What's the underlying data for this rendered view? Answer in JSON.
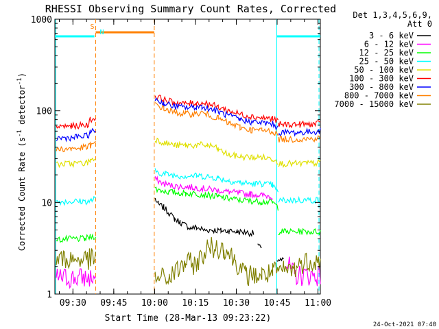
{
  "chart_data": {
    "type": "line",
    "title": "RHESSI Observing Summary Count Rates, Corrected",
    "xlabel": "Start Time (28-Mar-13 09:23:22)",
    "ylabel_main": "Corrected Count Rate (s",
    "ylabel_sup1": "-1",
    "ylabel_mid": " detector",
    "ylabel_sup2": "-1",
    "ylabel_end": ")",
    "yscale": "log",
    "ylim": [
      1,
      1000
    ],
    "x_unit": "minutes after 09:23:22",
    "xlim": [
      0,
      97.5
    ],
    "y_ticks": [
      {
        "v": 1,
        "label": "1"
      },
      {
        "v": 10,
        "label": "10"
      },
      {
        "v": 100,
        "label": "100"
      },
      {
        "v": 1000,
        "label": "1000"
      }
    ],
    "x_ticks": [
      {
        "v": 6.63,
        "label": "09:30"
      },
      {
        "v": 21.63,
        "label": "09:45"
      },
      {
        "v": 36.63,
        "label": "10:00"
      },
      {
        "v": 51.63,
        "label": "10:15"
      },
      {
        "v": 66.63,
        "label": "10:30"
      },
      {
        "v": 81.63,
        "label": "10:45"
      },
      {
        "v": 96.63,
        "label": "11:00"
      }
    ],
    "legend_header": [
      "Det 1,3,4,5,6,9,",
      "Att 0"
    ],
    "legend_position": "right",
    "series": [
      {
        "name": "3 - 6 keV",
        "color": "#000000",
        "segments": [
          [
            [
              36.8,
              11
            ],
            [
              38,
              9.5
            ],
            [
              40,
              8.8
            ],
            [
              42,
              7.6
            ],
            [
              44,
              6.6
            ],
            [
              46,
              6.1
            ],
            [
              48,
              5.6
            ],
            [
              50,
              5.3
            ],
            [
              52,
              5.3
            ],
            [
              55,
              5.0
            ],
            [
              58,
              5.0
            ],
            [
              61,
              4.9
            ],
            [
              64,
              4.9
            ],
            [
              67,
              4.8
            ],
            [
              70,
              4.7
            ],
            [
              73,
              4.6
            ]
          ],
          [
            [
              74.5,
              3.5
            ],
            [
              76,
              3.0
            ]
          ],
          [
            [
              81.5,
              2.4
            ],
            [
              84,
              2.3
            ]
          ]
        ]
      },
      {
        "name": "6 - 12 keV",
        "color": "#ff00ff",
        "segments": [
          [
            [
              0.5,
              1.5
            ],
            [
              15,
              1.5
            ]
          ],
          [
            [
              36.8,
              18
            ],
            [
              40,
              16
            ],
            [
              44,
              15
            ],
            [
              48,
              14.8
            ],
            [
              52,
              14.5
            ],
            [
              56,
              14
            ],
            [
              60,
              13.6
            ],
            [
              64,
              13
            ],
            [
              68,
              12.6
            ],
            [
              72,
              12.3
            ],
            [
              76,
              12
            ],
            [
              80,
              11.6
            ]
          ],
          [
            [
              85,
              2.2
            ],
            [
              88,
              1.6
            ],
            [
              97.5,
              1.6
            ]
          ]
        ]
      },
      {
        "name": "12 - 25 keV",
        "color": "#00ff00",
        "segments": [
          [
            [
              0.5,
              3.9
            ],
            [
              6,
              4.0
            ],
            [
              11,
              4.0
            ],
            [
              13,
              4.2
            ],
            [
              15,
              4.3
            ]
          ],
          [
            [
              36.8,
              14
            ],
            [
              42,
              13
            ],
            [
              48,
              12.5
            ],
            [
              52,
              12.5
            ],
            [
              56,
              12
            ],
            [
              60,
              11.5
            ],
            [
              64,
              11
            ],
            [
              68,
              10.6
            ],
            [
              72,
              10.4
            ],
            [
              76,
              10.2
            ],
            [
              80,
              10
            ],
            [
              82,
              8.8
            ]
          ],
          [
            [
              82,
              4.8
            ],
            [
              90,
              4.8
            ],
            [
              97.5,
              4.8
            ]
          ]
        ]
      },
      {
        "name": "25 - 50 keV",
        "color": "#00ffff",
        "segments": [
          [
            [
              0.5,
              10.2
            ],
            [
              13,
              10.3
            ],
            [
              14,
              10.8
            ],
            [
              15,
              10.8
            ]
          ],
          [
            [
              36.8,
              22
            ],
            [
              40,
              20.5
            ],
            [
              46,
              19.5
            ],
            [
              52,
              19.5
            ],
            [
              56,
              19.2
            ],
            [
              60,
              18.4
            ],
            [
              64,
              17.2
            ],
            [
              68,
              16.5
            ],
            [
              72,
              16
            ],
            [
              76,
              16
            ],
            [
              80,
              15.4
            ],
            [
              82,
              12.5
            ]
          ],
          [
            [
              82,
              10.5
            ],
            [
              90,
              10.6
            ],
            [
              97.5,
              10.6
            ]
          ]
        ]
      },
      {
        "name": "50 - 100 keV",
        "color": "#e0e000",
        "segments": [
          [
            [
              0.5,
              26
            ],
            [
              6,
              26.5
            ],
            [
              12,
              27
            ],
            [
              13,
              29
            ],
            [
              15,
              30
            ]
          ],
          [
            [
              36.8,
              49
            ],
            [
              40,
              45
            ],
            [
              44,
              42
            ],
            [
              48,
              42
            ],
            [
              52,
              42
            ],
            [
              54,
              42.5
            ],
            [
              56,
              42
            ],
            [
              58,
              41
            ],
            [
              60,
              38
            ],
            [
              62,
              35
            ],
            [
              64,
              33
            ],
            [
              68,
              31.5
            ],
            [
              72,
              31
            ],
            [
              76,
              31
            ],
            [
              80,
              30
            ],
            [
              82,
              28
            ]
          ],
          [
            [
              82,
              26.5
            ],
            [
              90,
              26.5
            ],
            [
              97.5,
              27
            ]
          ]
        ]
      },
      {
        "name": "100 - 300 keV",
        "color": "#ff0000",
        "segments": [
          [
            [
              0.5,
              67
            ],
            [
              6,
              68
            ],
            [
              12,
              70
            ],
            [
              13,
              80
            ],
            [
              15,
              83
            ]
          ],
          [
            [
              36.8,
              145
            ],
            [
              40,
              132
            ],
            [
              44,
              123
            ],
            [
              48,
              120
            ],
            [
              52,
              121
            ],
            [
              54,
              123
            ],
            [
              56,
              120
            ],
            [
              60,
              110
            ],
            [
              64,
              100
            ],
            [
              68,
              92
            ],
            [
              72,
              87
            ],
            [
              76,
              84
            ],
            [
              80,
              82
            ],
            [
              82,
              76
            ]
          ],
          [
            [
              82,
              71
            ],
            [
              90,
              71
            ],
            [
              97.5,
              72
            ]
          ]
        ]
      },
      {
        "name": "300 - 800 keV",
        "color": "#0000ff",
        "segments": [
          [
            [
              0.5,
              50
            ],
            [
              6,
              51
            ],
            [
              12,
              53
            ],
            [
              13,
              58
            ],
            [
              15,
              61
            ]
          ],
          [
            [
              36.8,
              135
            ],
            [
              40,
              120
            ],
            [
              44,
              112
            ],
            [
              48,
              108
            ],
            [
              52,
              110
            ],
            [
              54,
              112
            ],
            [
              56,
              108
            ],
            [
              60,
              98
            ],
            [
              64,
              88
            ],
            [
              68,
              80
            ],
            [
              72,
              76
            ],
            [
              76,
              74
            ],
            [
              80,
              72
            ],
            [
              82,
              65
            ]
          ],
          [
            [
              82,
              58
            ],
            [
              90,
              58
            ],
            [
              97.5,
              60
            ]
          ]
        ]
      },
      {
        "name": "800 - 7000 keV",
        "color": "#ff8000",
        "segments": [
          [
            [
              0.5,
              38
            ],
            [
              6,
              38.5
            ],
            [
              12,
              40
            ],
            [
              13,
              42
            ],
            [
              15,
              44
            ]
          ],
          [
            [
              36.8,
              120
            ],
            [
              40,
              105
            ],
            [
              44,
              96
            ],
            [
              48,
              92
            ],
            [
              52,
              93
            ],
            [
              54,
              95
            ],
            [
              56,
              92
            ],
            [
              60,
              82
            ],
            [
              64,
              73
            ],
            [
              68,
              66
            ],
            [
              72,
              62
            ],
            [
              76,
              61
            ],
            [
              80,
              60
            ],
            [
              82,
              54
            ]
          ],
          [
            [
              82,
              49
            ],
            [
              90,
              49
            ],
            [
              97.5,
              50
            ]
          ]
        ]
      },
      {
        "name": "7000 - 15000 keV",
        "color": "#808000",
        "segments": [
          [
            [
              0.5,
              2.4
            ],
            [
              15,
              2.4
            ]
          ],
          [
            [
              36.8,
              1.5
            ],
            [
              42,
              1.5
            ],
            [
              48,
              2.2
            ],
            [
              52,
              2.1
            ],
            [
              56,
              3.2
            ],
            [
              62,
              3.2
            ],
            [
              66,
              2.4
            ],
            [
              70,
              1.6
            ],
            [
              76,
              1.6
            ],
            [
              80,
              1.7
            ],
            [
              84,
              1.8
            ],
            [
              88,
              1.9
            ],
            [
              92,
              2.3
            ],
            [
              97.5,
              2.3
            ]
          ]
        ]
      }
    ],
    "annotations": {
      "markers": [
        {
          "label": "S",
          "color": "#ff8000",
          "x": 15
        },
        {
          "label": "N",
          "color": "#00ffff",
          "x": 15
        }
      ],
      "night_bars": [
        {
          "color": "#00ffff",
          "x_start": 0,
          "x_end": 14.5,
          "y": 650
        },
        {
          "color": "#ff8000",
          "x_start": 15,
          "x_end": 36.5,
          "y": 720
        },
        {
          "color": "#00ffff",
          "x_start": 81.5,
          "x_end": 97.5,
          "y": 650
        }
      ],
      "vlines_dashed": [
        {
          "color": "#ff8000",
          "x": 15
        },
        {
          "color": "#ff8000",
          "x": 36.5
        },
        {
          "color": "#00ffff",
          "x": 97
        }
      ],
      "vlines_solid": [
        {
          "color": "#00ffff",
          "x": 0.3
        },
        {
          "color": "#00ffff",
          "x": 81.5
        }
      ]
    },
    "grid": false
  },
  "footer": {
    "date": "24-Oct-2021 07:40"
  }
}
